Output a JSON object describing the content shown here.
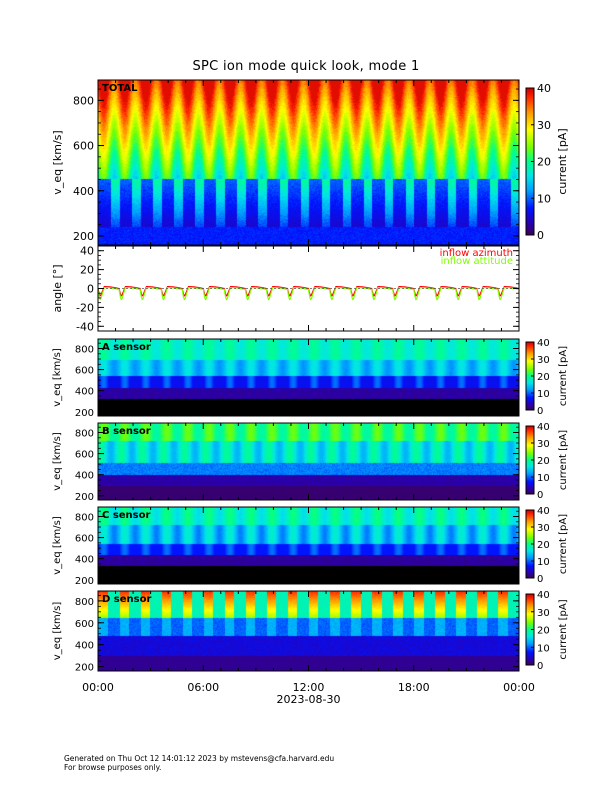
{
  "title": "SPC ion mode quick look, mode 1",
  "footer": {
    "line1": "Generated on Thu Oct 12 14:01:12 2023 by mstevens@cfa.harvard.edu",
    "line2": "For browse purposes only."
  },
  "chart_data": [
    {
      "type": "heatmap",
      "panel_label": "TOTAL",
      "ylabel": "v_eq [km/s]",
      "ylim": [
        160,
        890
      ],
      "yticks": [
        200,
        400,
        600,
        800
      ],
      "colorbar": {
        "label": "current [pA]",
        "range": [
          0,
          40
        ],
        "ticks": [
          0,
          10,
          20,
          30,
          40
        ]
      },
      "x_ticks": [
        "00:00",
        "06:00",
        "12:00",
        "18:00",
        "00:00"
      ],
      "pattern": "periodic beam ~20 cycles per day; high currents above ~450 km/s, low below"
    },
    {
      "type": "line",
      "ylabel": "angle [°]",
      "ylim": [
        -45,
        45
      ],
      "yticks": [
        -40,
        -20,
        0,
        20,
        40
      ],
      "series": [
        {
          "name": "inflow azimuth",
          "color": "#ff0000",
          "baseline": 0,
          "dip": -8,
          "cycles": 20
        },
        {
          "name": "inflow attitude",
          "color": "#7fff00",
          "baseline": -1,
          "dip": -12,
          "cycles": 20
        }
      ]
    },
    {
      "type": "heatmap",
      "panel_label": "A sensor",
      "ylabel": "v_eq [km/s]",
      "ylim": [
        160,
        890
      ],
      "yticks": [
        200,
        400,
        600,
        800
      ],
      "colorbar": {
        "label": "current [pA]",
        "range": [
          0,
          40
        ],
        "ticks": [
          0,
          10,
          20,
          30,
          40
        ]
      }
    },
    {
      "type": "heatmap",
      "panel_label": "B sensor",
      "ylabel": "v_eq [km/s]",
      "ylim": [
        160,
        890
      ],
      "yticks": [
        200,
        400,
        600,
        800
      ],
      "colorbar": {
        "label": "current [pA]",
        "range": [
          0,
          40
        ],
        "ticks": [
          0,
          10,
          20,
          30,
          40
        ]
      }
    },
    {
      "type": "heatmap",
      "panel_label": "C sensor",
      "ylabel": "v_eq [km/s]",
      "ylim": [
        160,
        890
      ],
      "yticks": [
        200,
        400,
        600,
        800
      ],
      "colorbar": {
        "label": "current [pA]",
        "range": [
          0,
          40
        ],
        "ticks": [
          0,
          10,
          20,
          30,
          40
        ]
      }
    },
    {
      "type": "heatmap",
      "panel_label": "D sensor",
      "ylabel": "v_eq [km/s]",
      "ylim": [
        160,
        890
      ],
      "yticks": [
        200,
        400,
        600,
        800
      ],
      "colorbar": {
        "label": "current [pA]",
        "range": [
          0,
          40
        ],
        "ticks": [
          0,
          10,
          20,
          30,
          40
        ]
      }
    }
  ],
  "x_axis": {
    "ticks": [
      "00:00",
      "06:00",
      "12:00",
      "18:00",
      "00:00"
    ],
    "date_label": "2023-08-30"
  }
}
